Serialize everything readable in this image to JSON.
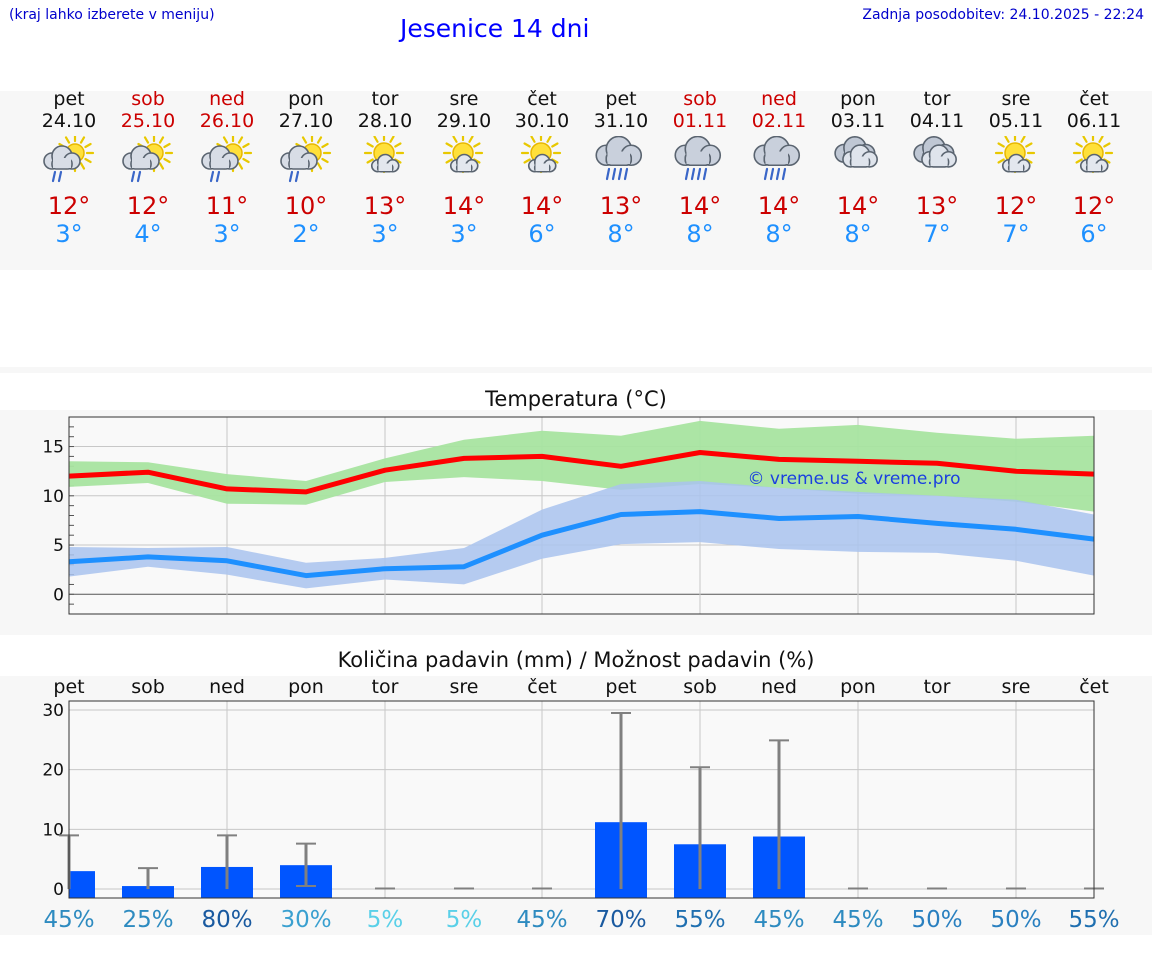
{
  "header": {
    "left_note": "(kraj lahko izberete v meniju)",
    "title": "Jesenice 14 dni",
    "updated": "Zadnja posodobitev: 24.10.2025 - 22:24"
  },
  "days": [
    {
      "name": "pet",
      "date": "24.10",
      "weekend": false,
      "icon": "partly-sunny-showers-icon",
      "max": "12°",
      "min": "3°"
    },
    {
      "name": "sob",
      "date": "25.10",
      "weekend": true,
      "icon": "partly-sunny-showers-icon",
      "max": "12°",
      "min": "4°"
    },
    {
      "name": "ned",
      "date": "26.10",
      "weekend": true,
      "icon": "partly-sunny-showers-icon",
      "max": "11°",
      "min": "3°"
    },
    {
      "name": "pon",
      "date": "27.10",
      "weekend": false,
      "icon": "partly-sunny-showers-icon",
      "max": "10°",
      "min": "2°"
    },
    {
      "name": "tor",
      "date": "28.10",
      "weekend": false,
      "icon": "partly-sunny-icon",
      "max": "13°",
      "min": "3°"
    },
    {
      "name": "sre",
      "date": "29.10",
      "weekend": false,
      "icon": "partly-sunny-icon",
      "max": "14°",
      "min": "3°"
    },
    {
      "name": "čet",
      "date": "30.10",
      "weekend": false,
      "icon": "partly-sunny-icon",
      "max": "14°",
      "min": "6°"
    },
    {
      "name": "pet",
      "date": "31.10",
      "weekend": false,
      "icon": "rain-cloud-icon",
      "max": "13°",
      "min": "8°"
    },
    {
      "name": "sob",
      "date": "01.11",
      "weekend": true,
      "icon": "rain-cloud-icon",
      "max": "14°",
      "min": "8°"
    },
    {
      "name": "ned",
      "date": "02.11",
      "weekend": true,
      "icon": "rain-cloud-icon",
      "max": "14°",
      "min": "8°"
    },
    {
      "name": "pon",
      "date": "03.11",
      "weekend": false,
      "icon": "cloudy-icon",
      "max": "14°",
      "min": "8°"
    },
    {
      "name": "tor",
      "date": "04.11",
      "weekend": false,
      "icon": "cloudy-icon",
      "max": "13°",
      "min": "7°"
    },
    {
      "name": "sre",
      "date": "05.11",
      "weekend": false,
      "icon": "partly-sunny-icon",
      "max": "12°",
      "min": "7°"
    },
    {
      "name": "čet",
      "date": "06.11",
      "weekend": false,
      "icon": "partly-sunny-icon",
      "max": "12°",
      "min": "6°"
    }
  ],
  "colors": {
    "max_line": "#ff0000",
    "min_line": "#1e90ff",
    "max_band": "#a8e4a0",
    "min_band": "#a9c3ee",
    "overlap_band": "#7dbf9a",
    "precip_bar": "#0055ff",
    "error_bar": "#808080",
    "grid": "#c8c8c8"
  },
  "chart_data": [
    {
      "type": "line",
      "title": "Temperatura (°C)",
      "xlabel": "",
      "ylabel": "",
      "x": [
        "pet",
        "sob",
        "ned",
        "pon",
        "tor",
        "sre",
        "čet",
        "pet",
        "sob",
        "ned",
        "pon",
        "tor",
        "sre",
        "čet"
      ],
      "ylim": [
        -2,
        18
      ],
      "yticks": [
        0,
        5,
        10,
        15
      ],
      "grid": true,
      "watermark": "© vreme.us & vreme.pro",
      "series": [
        {
          "name": "max",
          "values": [
            12.0,
            12.4,
            10.7,
            10.4,
            12.6,
            13.8,
            14.0,
            13.0,
            14.4,
            13.7,
            13.5,
            13.3,
            12.5,
            12.2
          ],
          "band_low": [
            10.9,
            11.3,
            9.2,
            9.1,
            11.4,
            11.9,
            11.5,
            10.6,
            11.2,
            10.8,
            10.2,
            10.0,
            9.4,
            8.4
          ],
          "band_high": [
            13.5,
            13.4,
            12.2,
            11.5,
            13.8,
            15.7,
            16.6,
            16.1,
            17.6,
            16.8,
            17.2,
            16.4,
            15.8,
            16.1
          ]
        },
        {
          "name": "min",
          "values": [
            3.3,
            3.8,
            3.4,
            1.9,
            2.6,
            2.8,
            6.0,
            8.1,
            8.4,
            7.7,
            7.9,
            7.2,
            6.6,
            5.6
          ],
          "band_low": [
            1.8,
            2.8,
            2.0,
            0.6,
            1.5,
            1.0,
            3.6,
            5.1,
            5.3,
            4.6,
            4.3,
            4.2,
            3.4,
            1.9
          ],
          "band_high": [
            4.8,
            4.7,
            4.8,
            3.2,
            3.7,
            4.7,
            8.6,
            11.2,
            11.5,
            10.8,
            10.4,
            10.0,
            9.6,
            8.1
          ]
        }
      ]
    },
    {
      "type": "bar",
      "title": "Količina padavin (mm) / Možnost padavin (%)",
      "xlabel": "",
      "ylabel": "",
      "categories": [
        "pet",
        "sob",
        "ned",
        "pon",
        "tor",
        "sre",
        "čet",
        "pet",
        "sob",
        "ned",
        "pon",
        "tor",
        "sre",
        "čet"
      ],
      "ylim": [
        -1.5,
        31.5
      ],
      "yticks": [
        0,
        10,
        20,
        30
      ],
      "grid": true,
      "values": [
        3.0,
        0.5,
        3.7,
        4.0,
        0,
        0,
        0,
        11.2,
        7.5,
        8.8,
        0,
        0,
        0,
        0
      ],
      "error_high": [
        9.0,
        3.5,
        9.0,
        7.6,
        0.1,
        0.1,
        0.1,
        29.5,
        20.4,
        24.9,
        0.1,
        0.1,
        0.1,
        0.1
      ],
      "error_low": [
        0,
        0,
        0,
        0.5,
        0,
        0,
        0,
        0,
        0,
        0,
        0,
        0,
        0,
        0
      ],
      "probability": [
        "45%",
        "25%",
        "80%",
        "30%",
        "5%",
        "5%",
        "45%",
        "70%",
        "55%",
        "45%",
        "45%",
        "50%",
        "50%",
        "55%"
      ],
      "probability_colors": [
        "#2e8bc0",
        "#2e8bc0",
        "#1a5aa0",
        "#3aa0d0",
        "#5ad0e8",
        "#5ad0e8",
        "#2e8bc0",
        "#1a5aa0",
        "#1f6fb0",
        "#2e8bc0",
        "#2e8bc0",
        "#2a80c0",
        "#2a80c0",
        "#1f6fb0"
      ]
    }
  ]
}
